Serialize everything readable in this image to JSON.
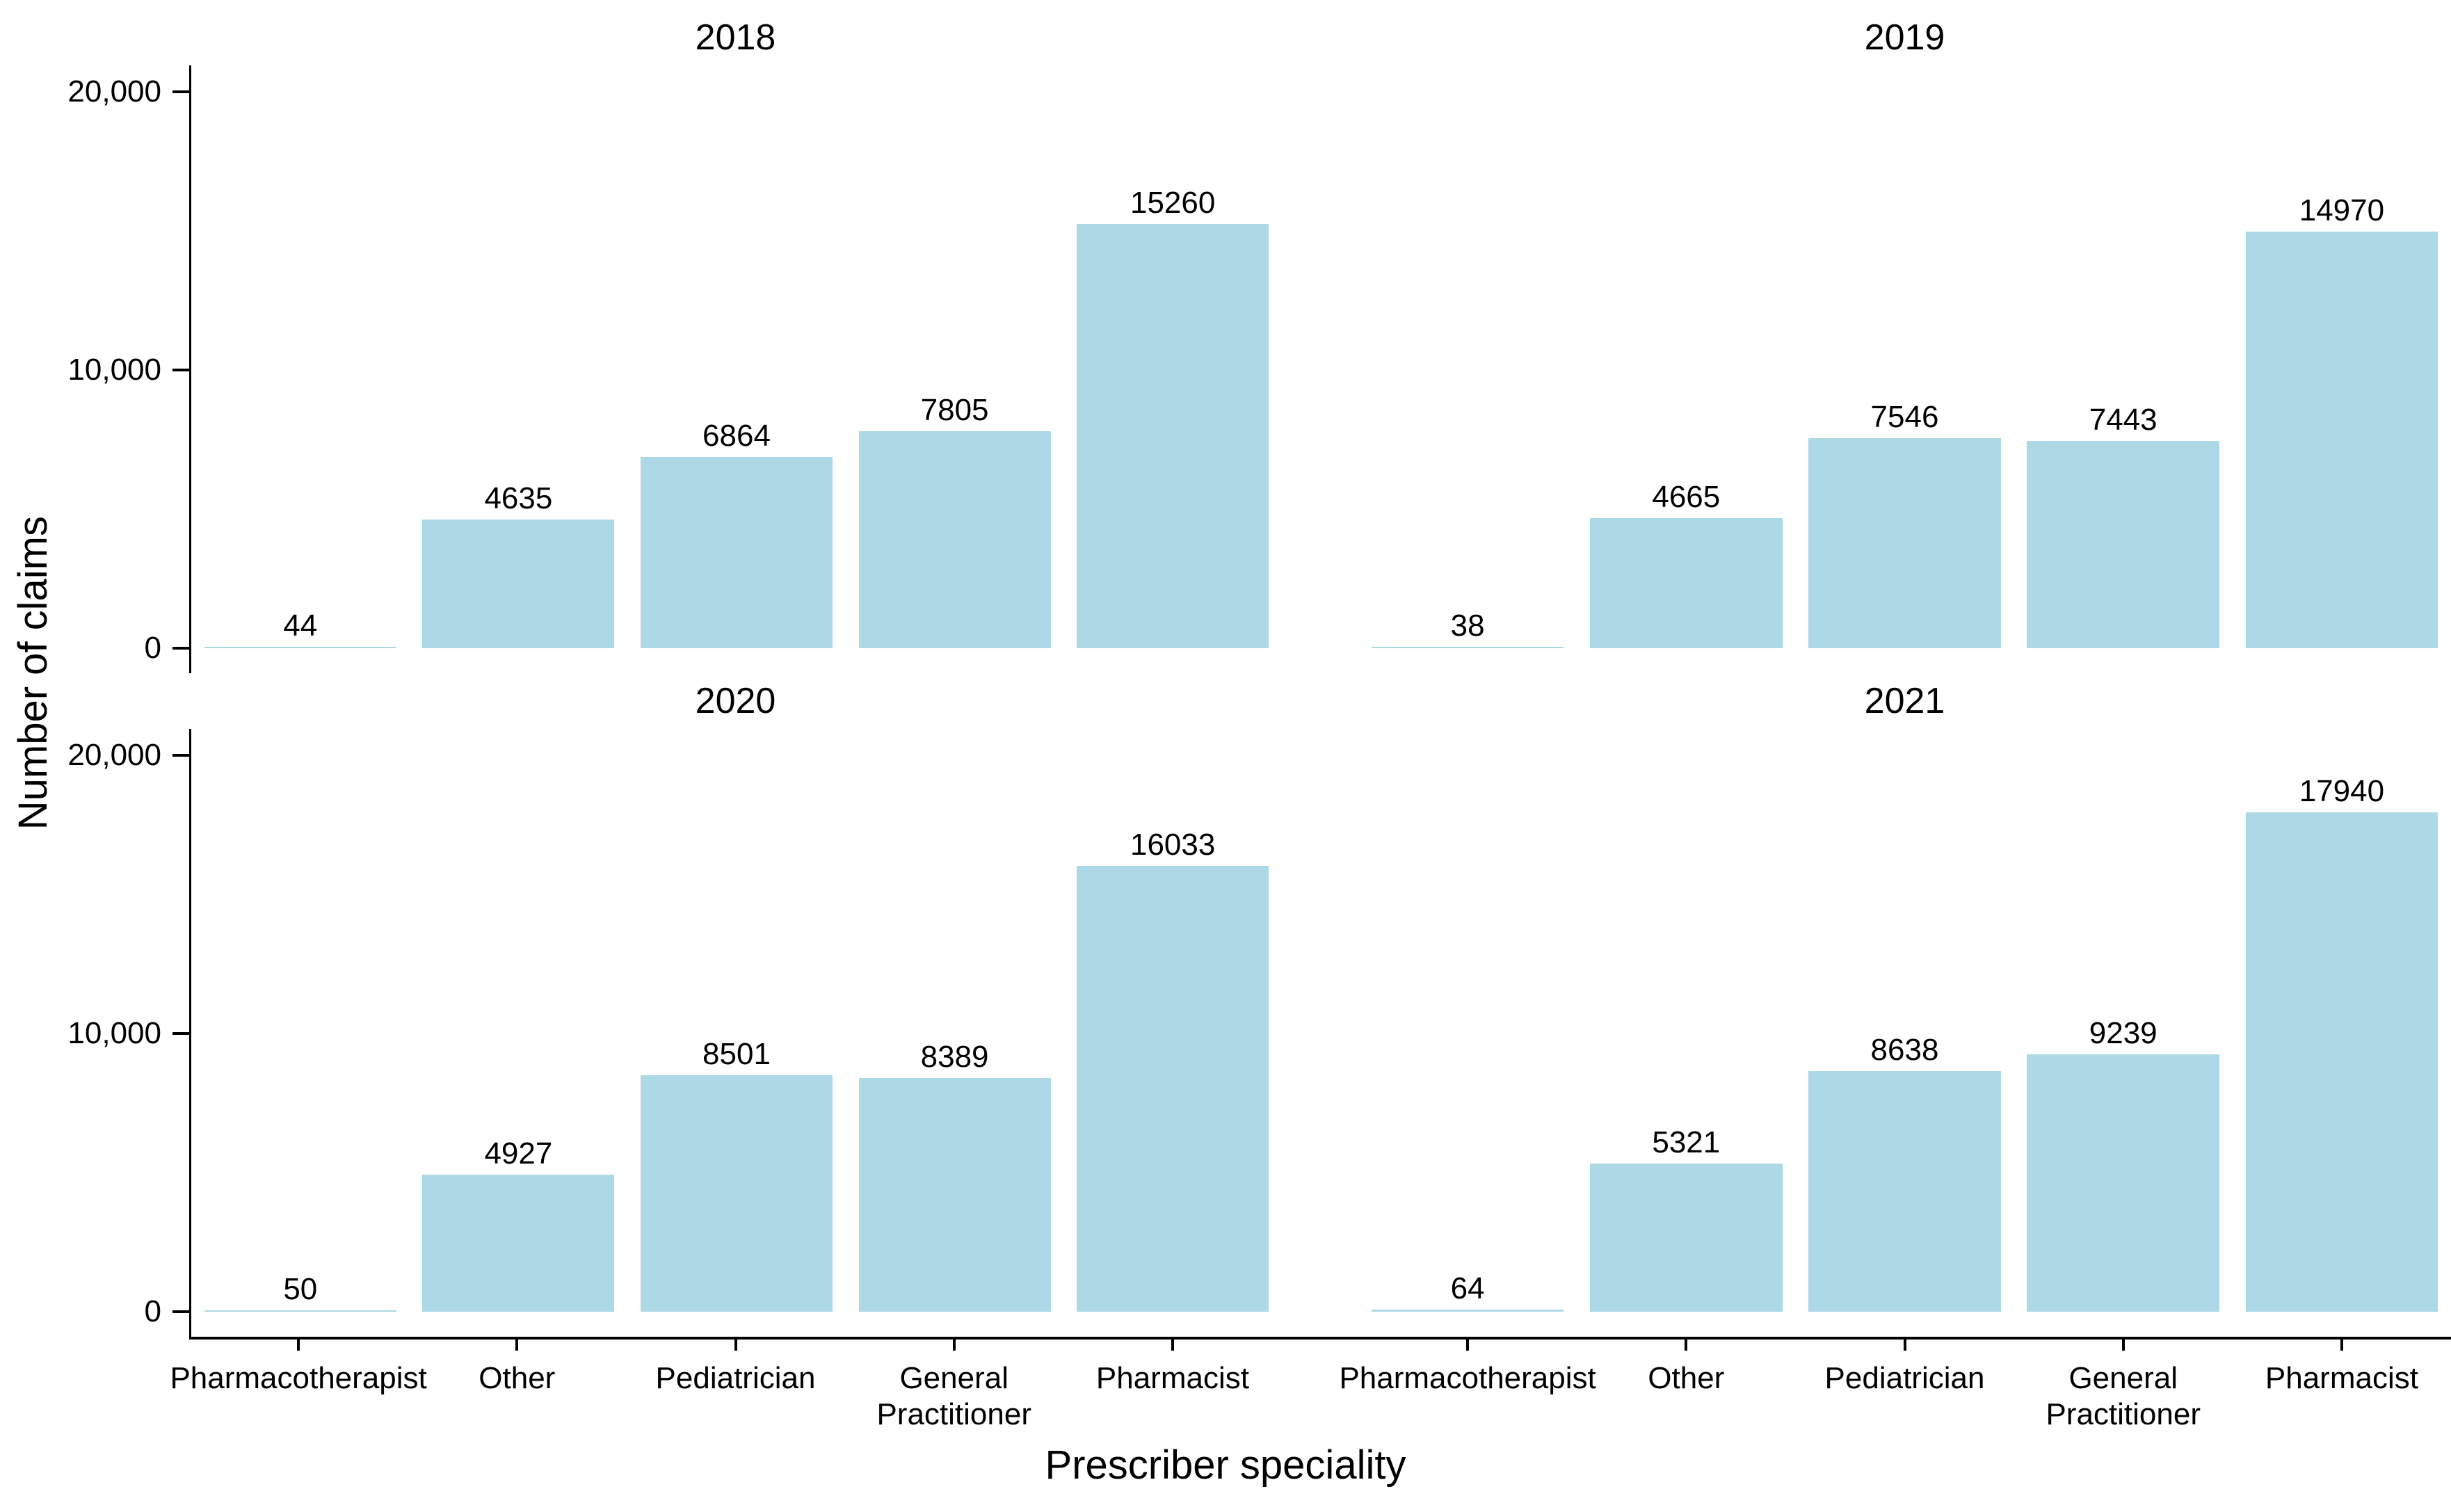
{
  "figure": {
    "y_axis_title": "Number of claims",
    "x_axis_title": "Prescriber speciality"
  },
  "chart_data": {
    "type": "bar",
    "title": "",
    "xlabel": "Prescriber speciality",
    "ylabel": "Number of claims",
    "categories": [
      "Pharmacotherapist",
      "Other",
      "Pediatrician",
      "General Practitioner",
      "Pharmacist"
    ],
    "category_tick_labels": [
      "Pharmacotherapist",
      "Other",
      "Pediatrician",
      "General\nPractitioner",
      "Pharmacist"
    ],
    "facets": [
      {
        "title": "2018",
        "values": [
          44,
          4635,
          6864,
          7805,
          15260
        ]
      },
      {
        "title": "2019",
        "values": [
          38,
          4665,
          7546,
          7443,
          14970
        ]
      },
      {
        "title": "2020",
        "values": [
          50,
          4927,
          8501,
          8389,
          16033
        ]
      },
      {
        "title": "2021",
        "values": [
          64,
          5321,
          8638,
          9239,
          17940
        ]
      }
    ],
    "yticks": [
      {
        "value": 0,
        "label": "0"
      },
      {
        "value": 10000,
        "label": "10,000"
      },
      {
        "value": 20000,
        "label": "20,000"
      }
    ],
    "ylim": [
      0,
      21000
    ],
    "grid": false,
    "legend": false,
    "bar_color": "#ADD8E6",
    "axis_color": "#000000",
    "text_color": "#000000",
    "layout": "2x2 facet grid by year, shared axes, value labels above bars"
  }
}
